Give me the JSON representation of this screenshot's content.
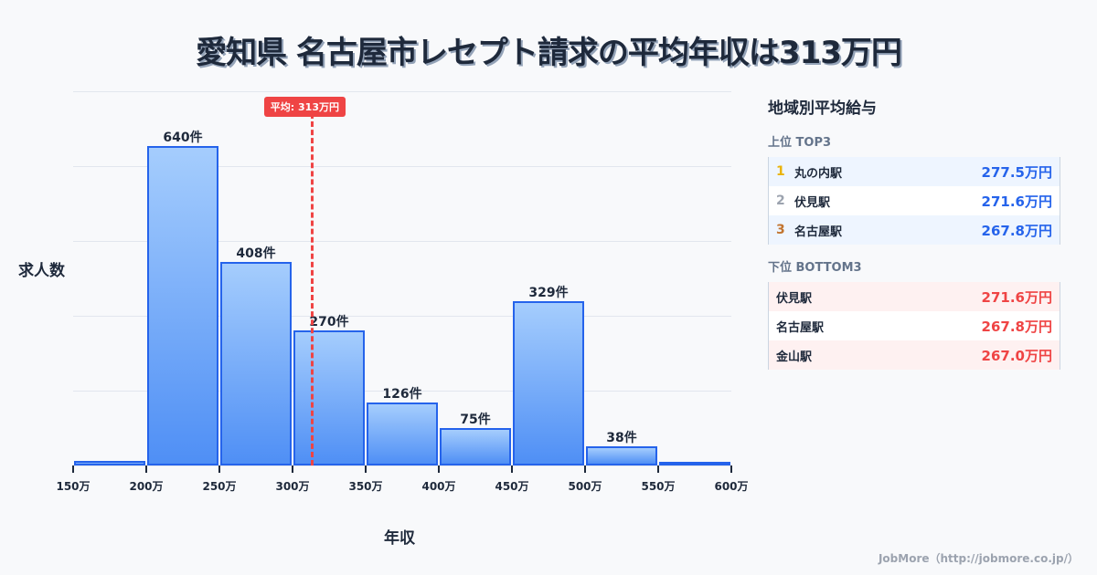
{
  "title": "愛知県 名古屋市レセプト請求の平均年収は313万円",
  "chart_data": {
    "type": "bar",
    "title": "愛知県 名古屋市レセプト請求の平均年収は313万円",
    "xlabel": "年収",
    "ylabel": "求人数",
    "categories": [
      "150-200万",
      "200-250万",
      "250-300万",
      "300-350万",
      "350-400万",
      "400-450万",
      "450-500万",
      "500-550万",
      "550-600万"
    ],
    "values": [
      9,
      640,
      408,
      270,
      126,
      75,
      329,
      38,
      7
    ],
    "bar_labels": [
      "",
      "640件",
      "408件",
      "270件",
      "126件",
      "75件",
      "329件",
      "38件",
      ""
    ],
    "x_ticks": [
      "150万",
      "200万",
      "250万",
      "300万",
      "350万",
      "400万",
      "450万",
      "500万",
      "550万",
      "600万"
    ],
    "ylim": [
      0,
      750
    ],
    "grid": true,
    "mean": {
      "value": 313,
      "label": "平均: 313万円",
      "color": "#ef4444"
    },
    "bar_color": "#2563eb"
  },
  "panel": {
    "title": "地域別平均給与",
    "top": {
      "heading": "上位 TOP3",
      "items": [
        {
          "rank": "1",
          "name": "丸の内駅",
          "value": "277.5万円"
        },
        {
          "rank": "2",
          "name": "伏見駅",
          "value": "271.6万円"
        },
        {
          "rank": "3",
          "name": "名古屋駅",
          "value": "267.8万円"
        }
      ],
      "rank_colors": [
        "#eab308",
        "#9ca3af",
        "#c2742f"
      ],
      "value_color": "#2563eb"
    },
    "bottom": {
      "heading": "下位 BOTTOM3",
      "items": [
        {
          "name": "伏見駅",
          "value": "271.6万円"
        },
        {
          "name": "名古屋駅",
          "value": "267.8万円"
        },
        {
          "name": "金山駅",
          "value": "267.0万円"
        }
      ],
      "value_color": "#ef4444"
    }
  },
  "footer": "JobMore（http://jobmore.co.jp/）"
}
